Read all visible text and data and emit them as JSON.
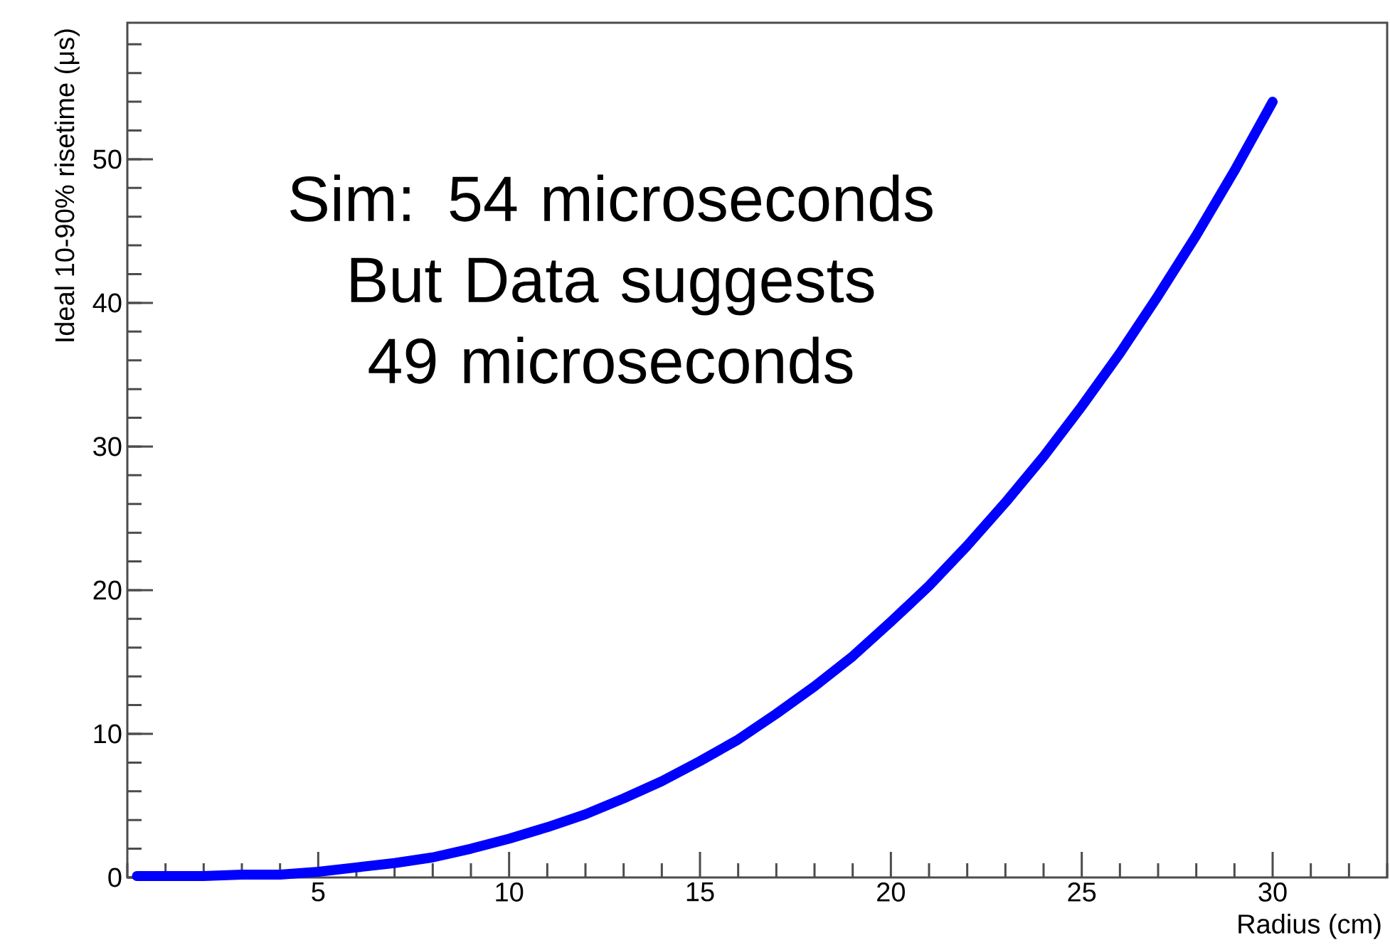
{
  "chart_data": {
    "type": "line",
    "xlabel": "Radius (cm)",
    "ylabel": "Ideal 10-90% risetime (μs)",
    "annotations": [
      "Sim: 54 microseconds But Data suggests 49 microseconds"
    ],
    "x": [
      0.25,
      1,
      2,
      3,
      4,
      5,
      6,
      7,
      8,
      9,
      10,
      11,
      12,
      13,
      14,
      15,
      16,
      17,
      18,
      19,
      20,
      21,
      22,
      23,
      24,
      25,
      26,
      27,
      28,
      29,
      30
    ],
    "series": [
      {
        "color": "#0000ff",
        "values": [
          0.1,
          0.1,
          0.1,
          0.2,
          0.2,
          0.4,
          0.7,
          1.0,
          1.4,
          2.0,
          2.7,
          3.5,
          4.4,
          5.5,
          6.7,
          8.1,
          9.6,
          11.4,
          13.3,
          15.4,
          17.8,
          20.3,
          23.1,
          26.1,
          29.3,
          32.8,
          36.5,
          40.5,
          44.7,
          49.2,
          54.0
        ]
      }
    ],
    "xlim": [
      0,
      33
    ],
    "ylim": [
      0,
      59.5
    ],
    "xticks": [
      5,
      10,
      15,
      20,
      25,
      30
    ],
    "yticks": [
      0,
      10,
      20,
      30,
      40,
      50
    ]
  }
}
